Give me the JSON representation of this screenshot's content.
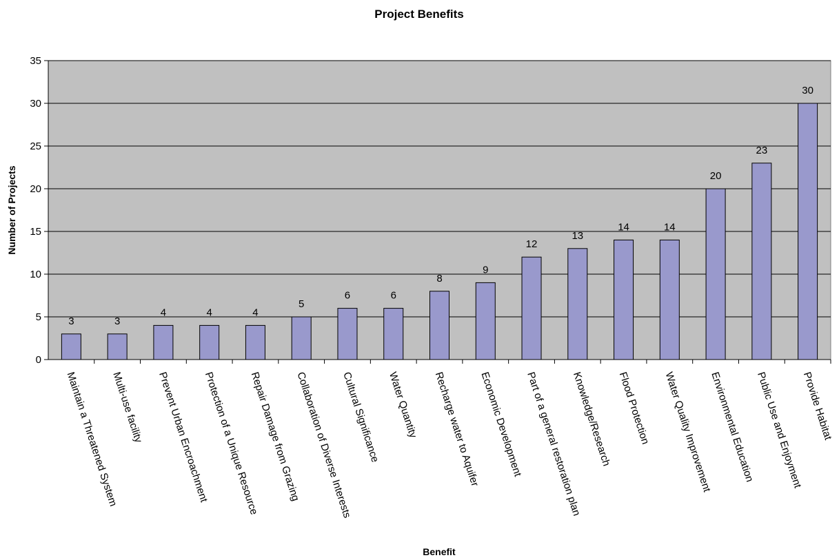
{
  "chart_data": {
    "type": "bar",
    "title": "Project Benefits",
    "xlabel": "Benefit",
    "ylabel": "Number of Projects",
    "ylim": [
      0,
      35
    ],
    "yticks": [
      0,
      5,
      10,
      15,
      20,
      25,
      30,
      35
    ],
    "grid": true,
    "legend": "none",
    "categories": [
      "Maintain a Threatened System",
      "Multi-use facility",
      "Prevent Urban Encroachment",
      "Protection of a Unique Resource",
      "Repair Damage from Grazing",
      "Collaboration of Diverse Interests",
      "Cultural Significance",
      "Water Quantity",
      "Recharge water to Aquifer",
      "Economic Development",
      "Part of a general restoration plan",
      "Knowledge/Research",
      "Flood Protection",
      "Water Quality Improvement",
      "Environmental Education",
      "Public Use and Enjoyment",
      "Provide Habitat"
    ],
    "values": [
      3,
      3,
      4,
      4,
      4,
      5,
      6,
      6,
      8,
      9,
      12,
      13,
      14,
      14,
      20,
      23,
      30
    ],
    "colors": {
      "bar": "#9999cc",
      "plot_background": "#c0c0c0",
      "gridline": "#000000"
    }
  }
}
